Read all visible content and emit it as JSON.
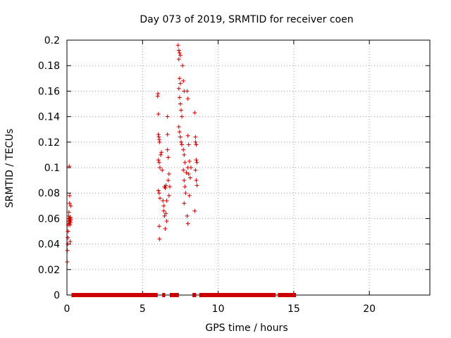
{
  "chart_data": {
    "type": "scatter",
    "title": "Day 073 of 2019, SRMTID for receiver coen",
    "xlabel": "GPS time / hours",
    "ylabel": "SRMTID / TECUs",
    "xlim": [
      0,
      24
    ],
    "ylim": [
      0,
      0.2
    ],
    "x_ticks": [
      0,
      5,
      10,
      15,
      20
    ],
    "x_tick_labels": [
      "0",
      "5",
      "10",
      "15",
      "20"
    ],
    "y_ticks": [
      0,
      0.02,
      0.04,
      0.06,
      0.08,
      0.1,
      0.12,
      0.14,
      0.16,
      0.18,
      0.2
    ],
    "y_tick_labels": [
      "0",
      "0.02",
      "0.04",
      "0.06",
      "0.08",
      "0.1",
      "0.12",
      "0.14",
      "0.16",
      "0.18",
      "0.2"
    ],
    "grid": true,
    "marker": "+",
    "marker_color": "#cc0000",
    "series": [
      {
        "values_xy": [
          [
            0.02,
            0.026
          ],
          [
            0.03,
            0.035
          ],
          [
            0.05,
            0.04
          ],
          [
            0.06,
            0.045
          ],
          [
            0.07,
            0.05
          ],
          [
            0.08,
            0.055
          ],
          [
            0.1,
            0.058
          ],
          [
            0.11,
            0.06
          ],
          [
            0.12,
            0.062
          ],
          [
            0.13,
            0.065
          ],
          [
            0.14,
            0.058
          ],
          [
            0.15,
            0.056
          ],
          [
            0.15,
            0.101
          ],
          [
            0.16,
            0.06
          ],
          [
            0.17,
            0.072
          ],
          [
            0.18,
            0.078
          ],
          [
            0.19,
            0.058
          ],
          [
            0.2,
            0.055
          ],
          [
            0.21,
            0.06
          ],
          [
            0.22,
            0.042
          ],
          [
            0.23,
            0.061
          ],
          [
            0.24,
            0.057
          ],
          [
            0.25,
            0.07
          ],
          [
            0.26,
            0.059
          ],
          [
            6.0,
            0.156
          ],
          [
            6.02,
            0.158
          ],
          [
            6.05,
            0.142
          ],
          [
            6.05,
            0.126
          ],
          [
            6.08,
            0.124
          ],
          [
            6.1,
            0.122
          ],
          [
            6.12,
            0.12
          ],
          [
            6.05,
            0.106
          ],
          [
            6.1,
            0.104
          ],
          [
            6.15,
            0.1
          ],
          [
            6.05,
            0.082
          ],
          [
            6.1,
            0.08
          ],
          [
            6.15,
            0.076
          ],
          [
            6.1,
            0.054
          ],
          [
            6.12,
            0.044
          ],
          [
            6.2,
            0.11
          ],
          [
            6.25,
            0.112
          ],
          [
            6.3,
            0.098
          ],
          [
            6.35,
            0.074
          ],
          [
            6.4,
            0.07
          ],
          [
            6.4,
            0.066
          ],
          [
            6.45,
            0.062
          ],
          [
            6.45,
            0.085
          ],
          [
            6.5,
            0.084
          ],
          [
            6.5,
            0.052
          ],
          [
            6.55,
            0.064
          ],
          [
            6.55,
            0.086
          ],
          [
            6.6,
            0.074
          ],
          [
            6.6,
            0.058
          ],
          [
            6.65,
            0.14
          ],
          [
            6.65,
            0.126
          ],
          [
            6.65,
            0.114
          ],
          [
            6.7,
            0.108
          ],
          [
            6.7,
            0.09
          ],
          [
            6.75,
            0.095
          ],
          [
            6.75,
            0.078
          ],
          [
            6.8,
            0.085
          ],
          [
            7.35,
            0.196
          ],
          [
            7.4,
            0.192
          ],
          [
            7.45,
            0.19
          ],
          [
            7.5,
            0.188
          ],
          [
            7.4,
            0.185
          ],
          [
            7.45,
            0.17
          ],
          [
            7.5,
            0.166
          ],
          [
            7.4,
            0.162
          ],
          [
            7.45,
            0.155
          ],
          [
            7.5,
            0.15
          ],
          [
            7.55,
            0.145
          ],
          [
            7.6,
            0.14
          ],
          [
            7.4,
            0.132
          ],
          [
            7.45,
            0.128
          ],
          [
            7.5,
            0.124
          ],
          [
            7.55,
            0.12
          ],
          [
            7.6,
            0.118
          ],
          [
            7.65,
            0.18
          ],
          [
            7.7,
            0.168
          ],
          [
            7.75,
            0.16
          ],
          [
            7.7,
            0.114
          ],
          [
            7.75,
            0.11
          ],
          [
            7.8,
            0.104
          ],
          [
            7.7,
            0.098
          ],
          [
            7.75,
            0.09
          ],
          [
            7.8,
            0.085
          ],
          [
            7.75,
            0.072
          ],
          [
            7.85,
            0.08
          ],
          [
            7.9,
            0.096
          ],
          [
            7.95,
            0.16
          ],
          [
            8.0,
            0.154
          ],
          [
            8.0,
            0.125
          ],
          [
            8.05,
            0.118
          ],
          [
            8.0,
            0.1
          ],
          [
            8.05,
            0.095
          ],
          [
            8.1,
            0.105
          ],
          [
            7.95,
            0.062
          ],
          [
            8.0,
            0.056
          ],
          [
            8.1,
            0.078
          ],
          [
            8.15,
            0.092
          ],
          [
            8.2,
            0.1
          ],
          [
            8.45,
            0.143
          ],
          [
            8.5,
            0.124
          ],
          [
            8.5,
            0.12
          ],
          [
            8.55,
            0.118
          ],
          [
            8.55,
            0.106
          ],
          [
            8.6,
            0.104
          ],
          [
            8.5,
            0.098
          ],
          [
            8.55,
            0.09
          ],
          [
            8.6,
            0.086
          ],
          [
            8.45,
            0.066
          ]
        ],
        "zero_coverage_hours": [
          [
            0.3,
            6.0
          ],
          [
            6.3,
            6.5
          ],
          [
            6.8,
            7.4
          ],
          [
            8.3,
            8.55
          ],
          [
            8.75,
            13.8
          ],
          [
            13.95,
            15.15
          ]
        ]
      }
    ]
  }
}
